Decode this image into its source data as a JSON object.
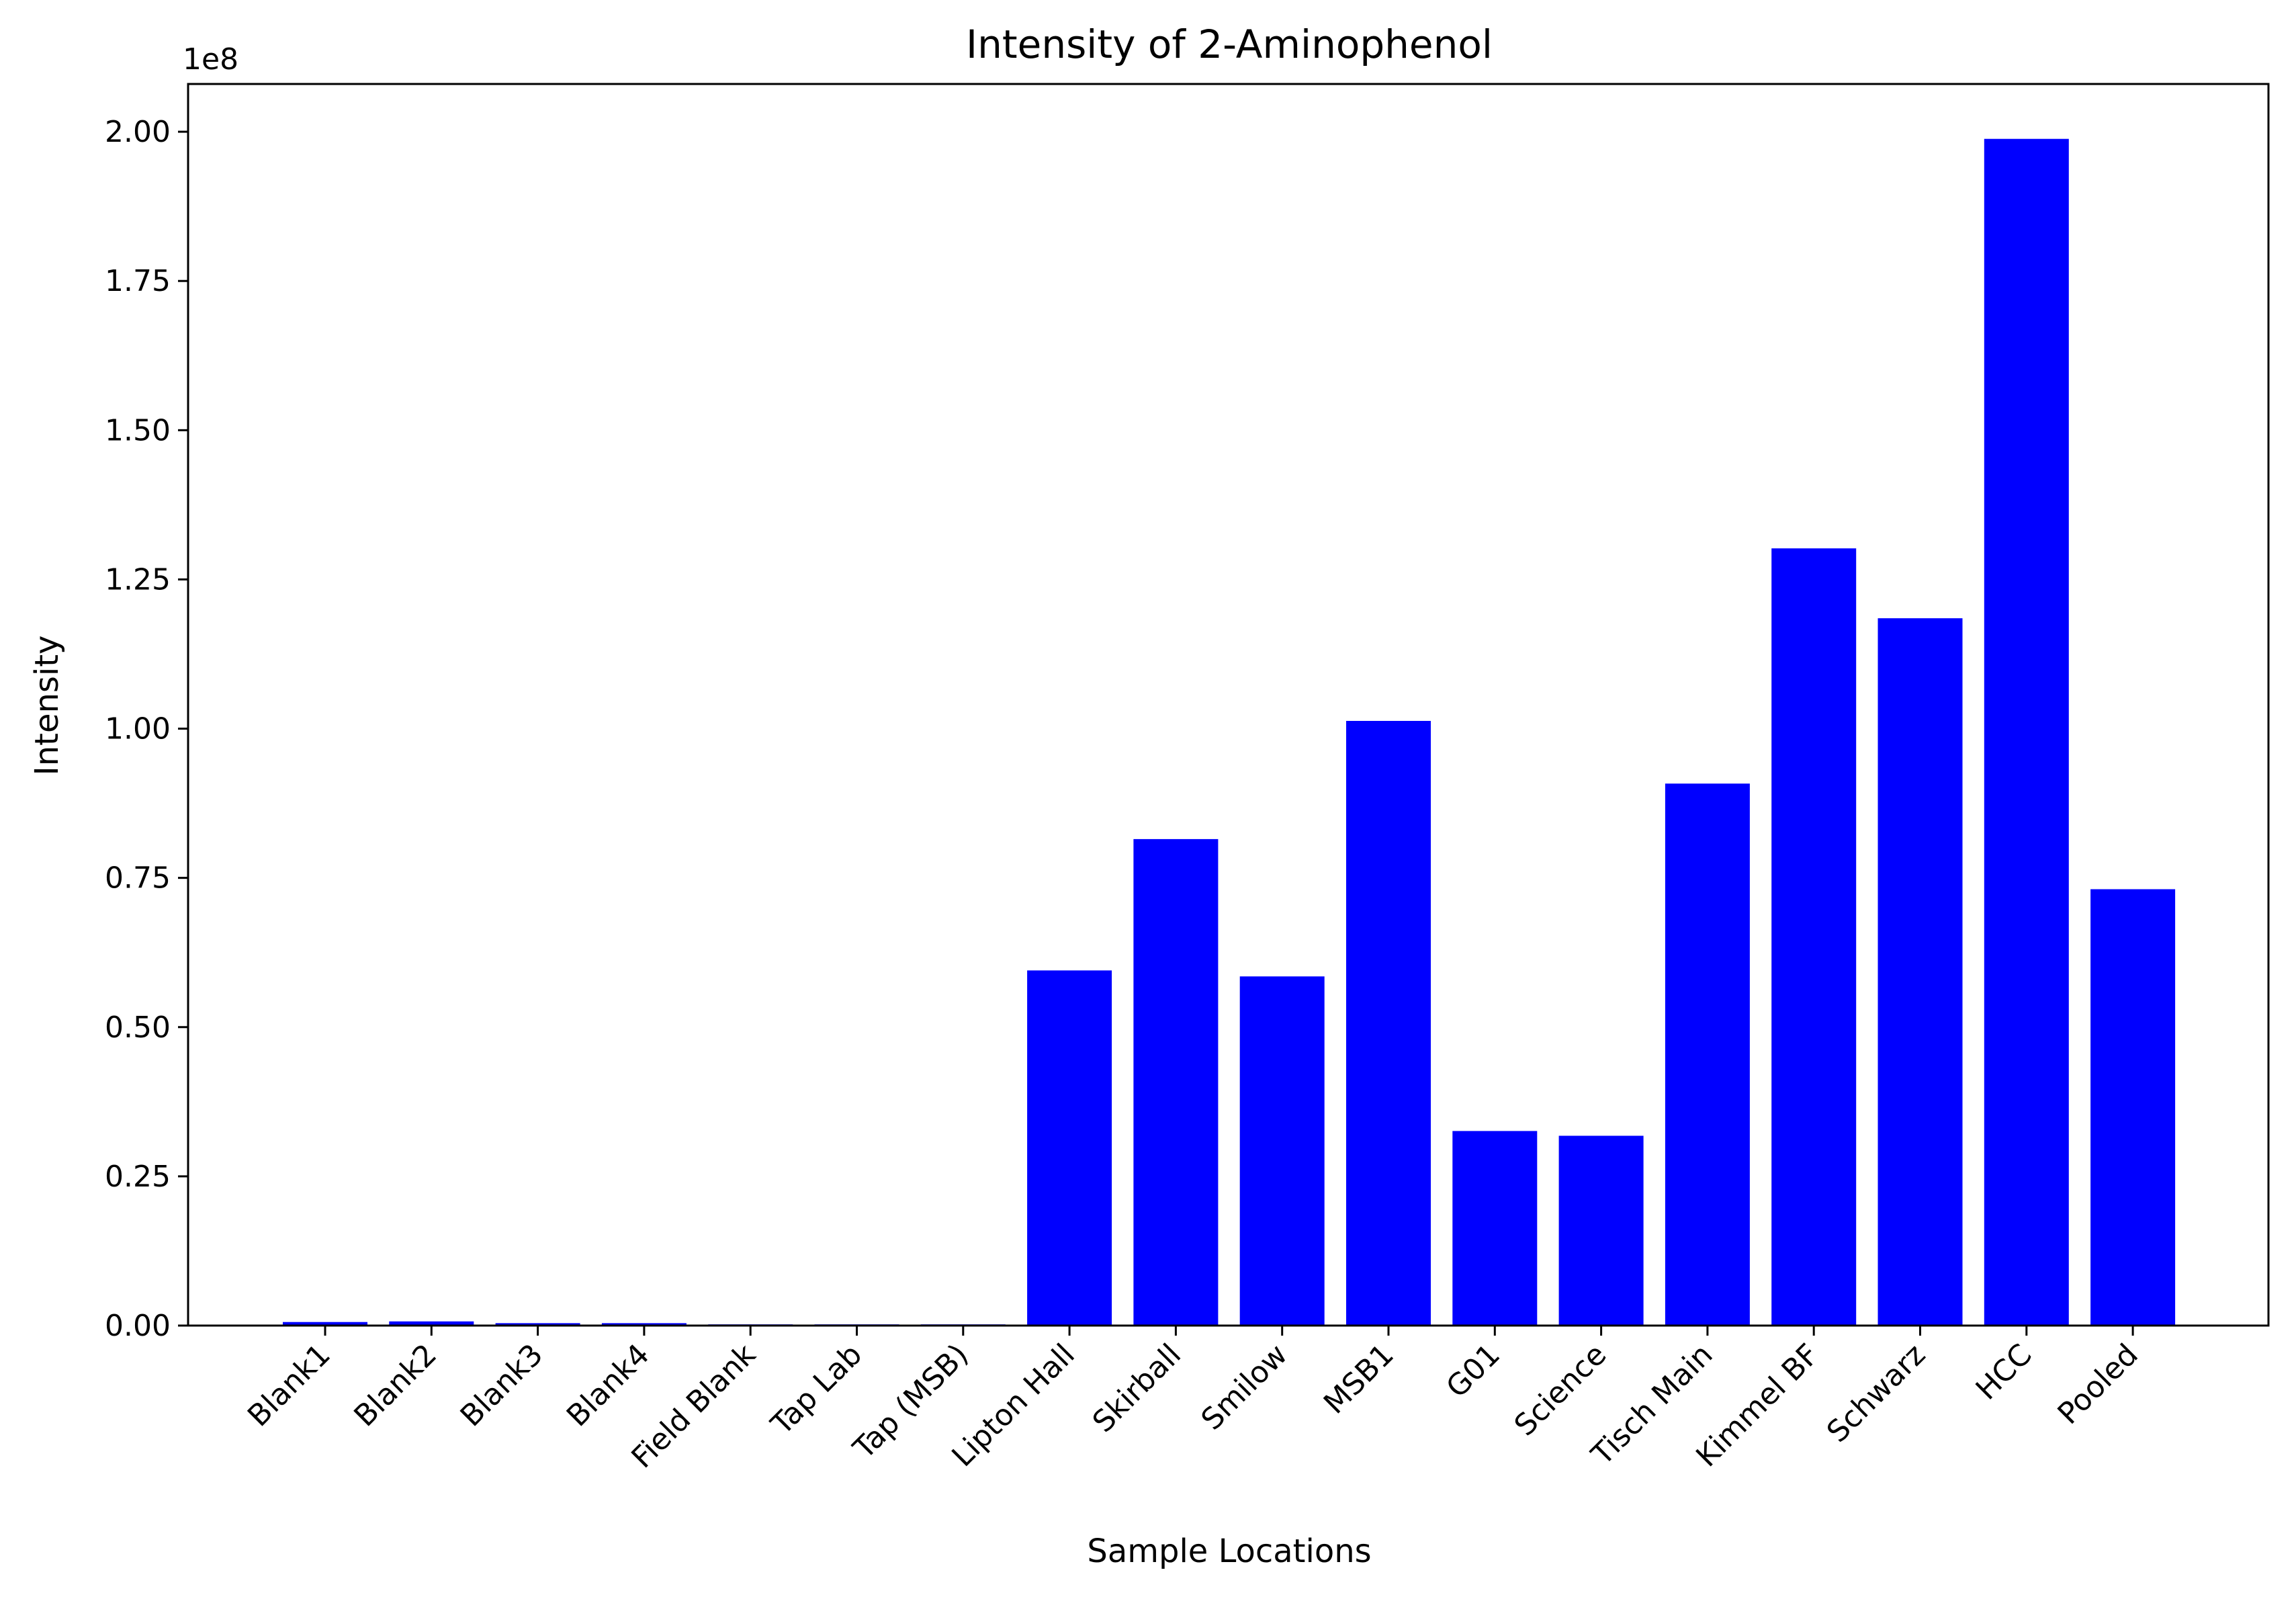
{
  "chart_data": {
    "type": "bar",
    "title": "Intensity of 2-Aminophenol",
    "xlabel": "Sample Locations",
    "ylabel": "Intensity",
    "y_offset_label": "1e8",
    "y_scale": 100000000,
    "ylim": [
      0,
      2.08
    ],
    "yticks": [
      0.0,
      0.25,
      0.5,
      0.75,
      1.0,
      1.25,
      1.5,
      1.75,
      2.0
    ],
    "ytick_labels": [
      "0.00",
      "0.25",
      "0.50",
      "0.75",
      "1.00",
      "1.25",
      "1.50",
      "1.75",
      "2.00"
    ],
    "categories": [
      "Blank1",
      "Blank2",
      "Blank3",
      "Blank4",
      "Field Blank",
      "Tap Lab",
      "Tap (MSB)",
      "Lipton Hall",
      "Skirball",
      "Smilow",
      "MSB1",
      "G01",
      "Science",
      "Tisch Main",
      "Kimmel BF",
      "Schwarz",
      "HCC",
      "Pooled"
    ],
    "values": [
      0.006,
      0.007,
      0.004,
      0.004,
      0.002,
      0.002,
      0.002,
      0.595,
      0.815,
      0.585,
      1.013,
      0.326,
      0.318,
      0.908,
      1.302,
      1.185,
      1.988,
      0.731
    ],
    "bar_color": "#0000ff",
    "grid": false,
    "legend": "none"
  }
}
